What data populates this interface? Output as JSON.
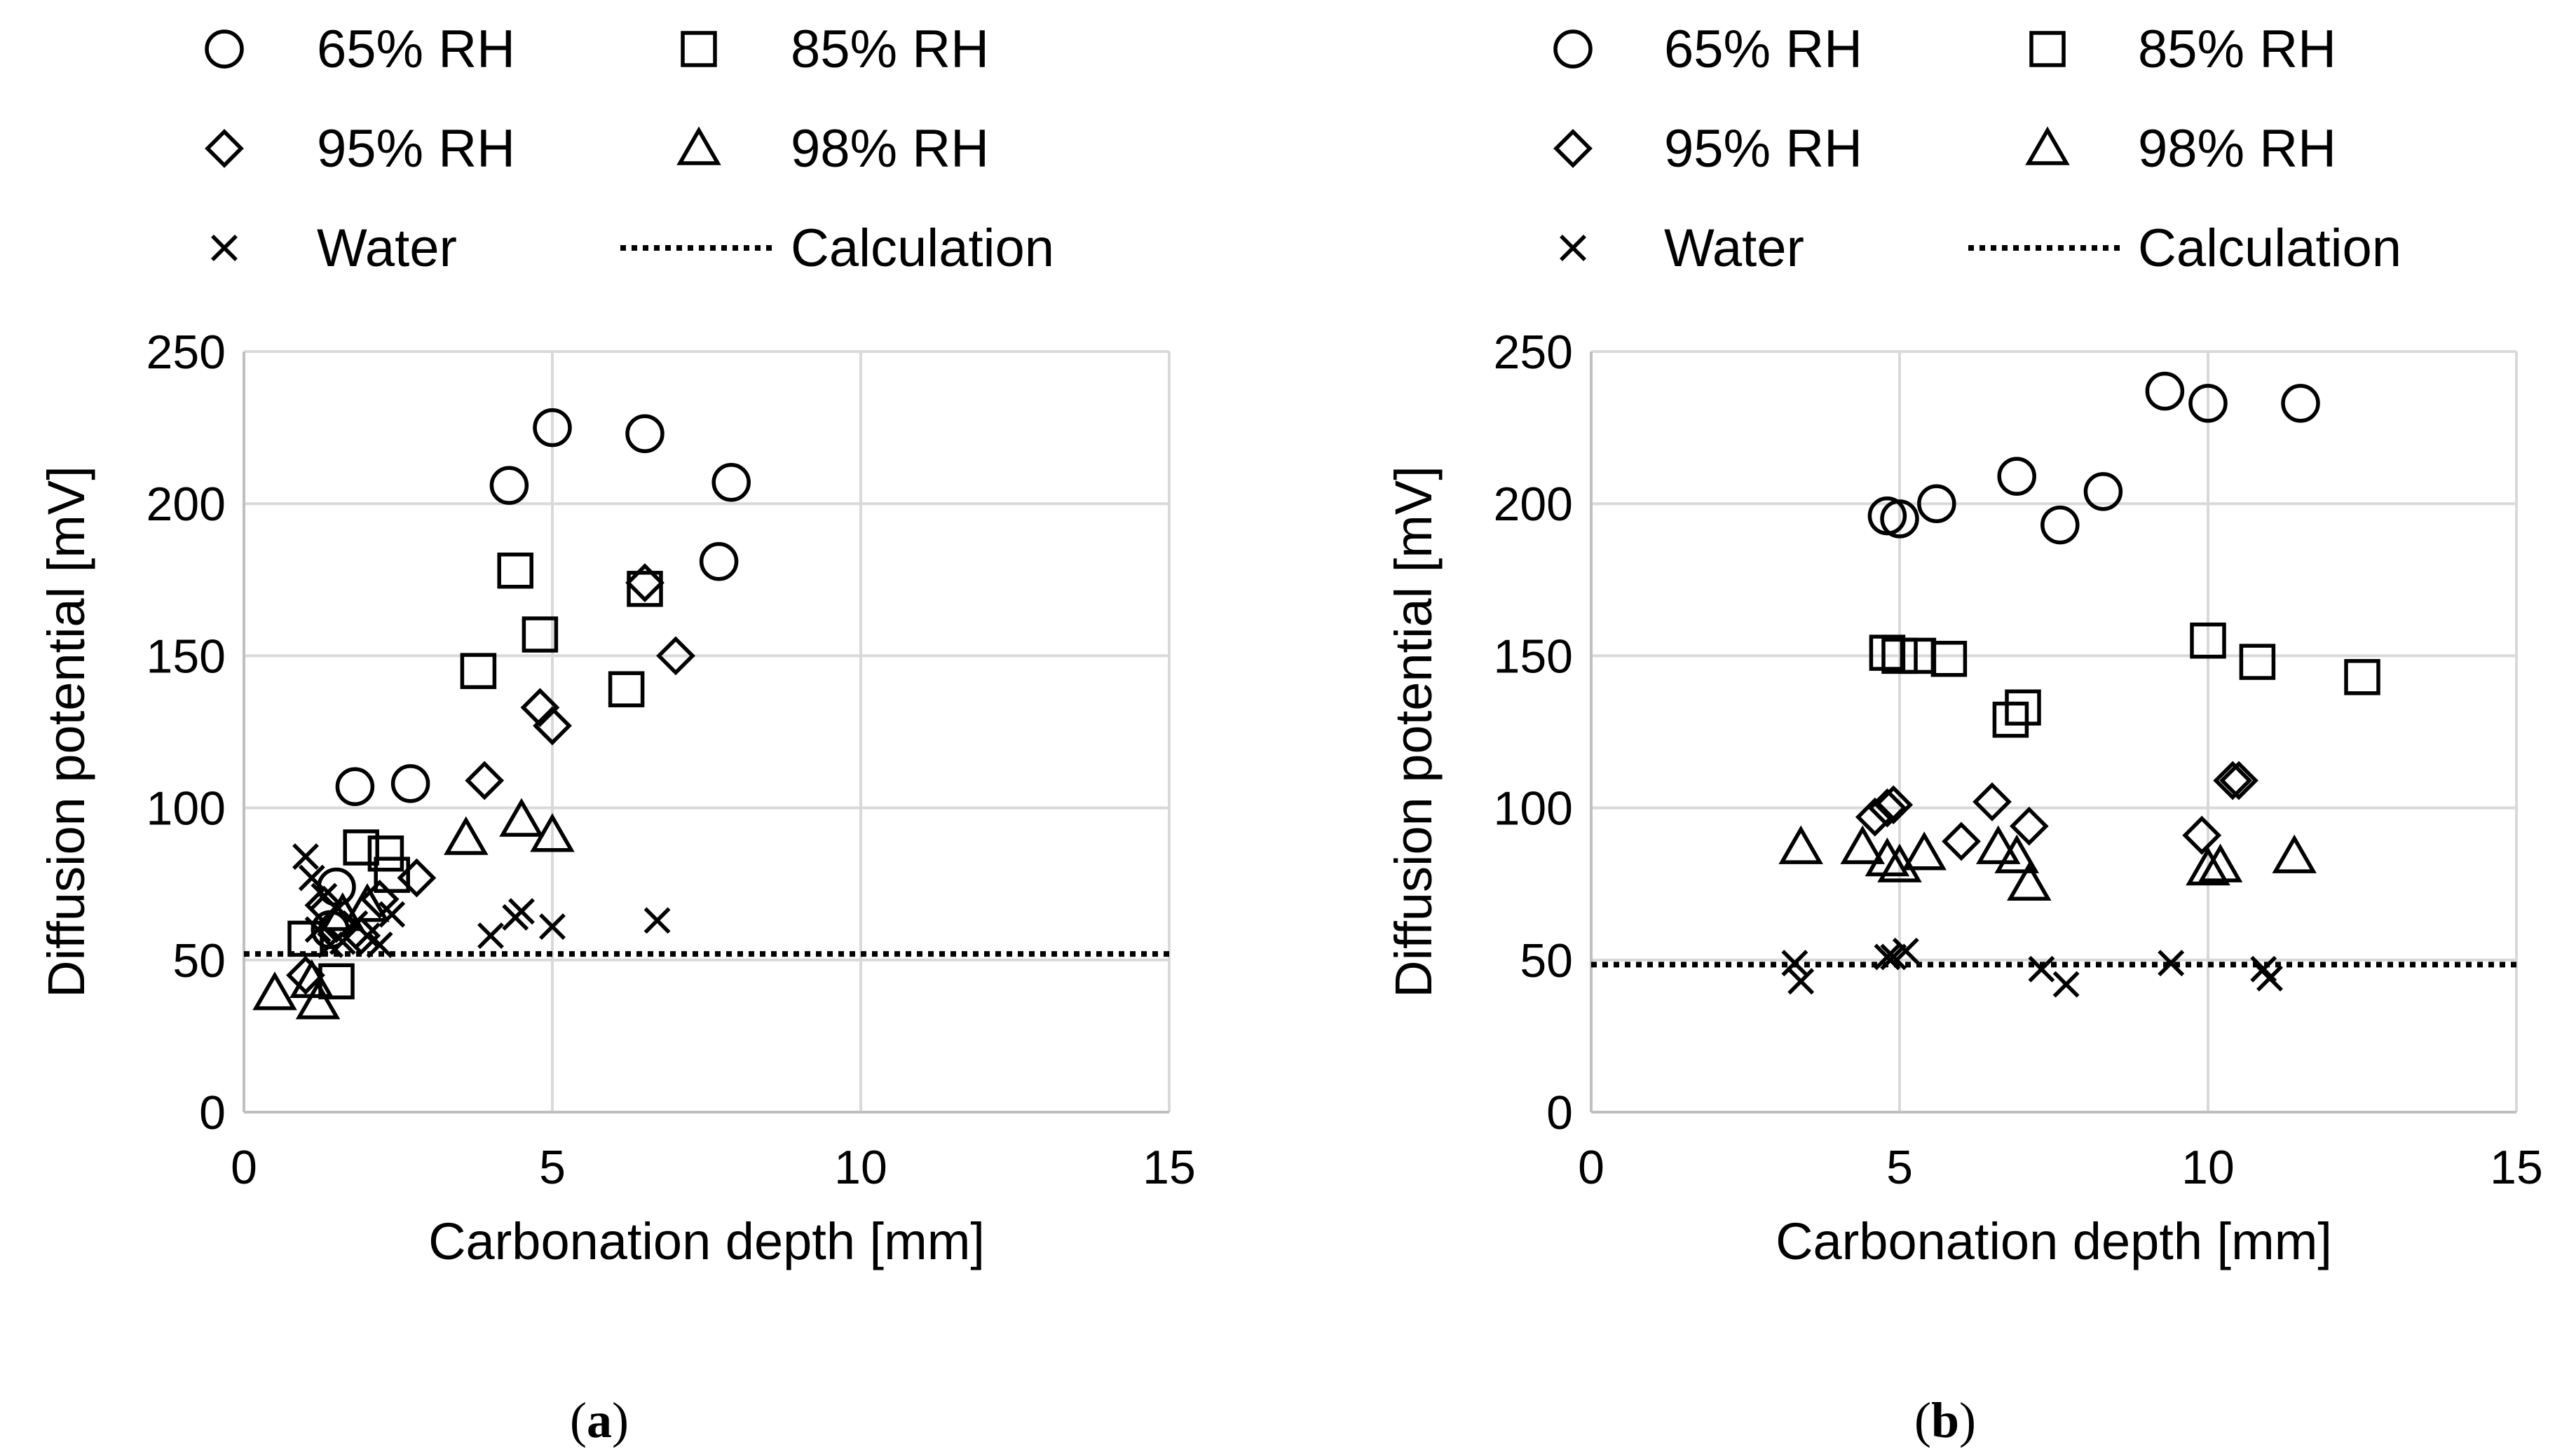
{
  "chart_data": [
    {
      "type": "scatter",
      "panel_label": "a",
      "xlabel": "Carbonation depth [mm]",
      "ylabel": "Diffusion potential [mV]",
      "xlim": [
        0,
        15
      ],
      "ylim": [
        0,
        250
      ],
      "xticks": [
        0,
        5,
        10,
        15
      ],
      "yticks": [
        0,
        50,
        100,
        150,
        200,
        250
      ],
      "grid": "vertical gridlines at x ticks; horizontal gridlines at y ticks",
      "legend_position": "top",
      "legend": [
        {
          "name": "65% RH",
          "marker": "circle"
        },
        {
          "name": "85% RH",
          "marker": "square"
        },
        {
          "name": "95% RH",
          "marker": "diamond"
        },
        {
          "name": "98% RH",
          "marker": "triangle"
        },
        {
          "name": "Water",
          "marker": "cross"
        },
        {
          "name": "Calculation",
          "marker": "dotted-line"
        }
      ],
      "series": [
        {
          "name": "65% RH",
          "marker": "circle",
          "x": [
            1.5,
            1.8,
            2.7,
            4.3,
            5.0,
            6.5,
            7.9,
            7.7,
            1.4
          ],
          "y": [
            74,
            107,
            108,
            206,
            225,
            223,
            207,
            181,
            60
          ]
        },
        {
          "name": "85% RH",
          "marker": "square",
          "x": [
            1.0,
            1.5,
            1.9,
            2.3,
            2.4,
            3.8,
            4.4,
            4.8,
            6.2,
            6.5
          ],
          "y": [
            57,
            43,
            87,
            85,
            78,
            145,
            178,
            157,
            139,
            172
          ]
        },
        {
          "name": "95% RH",
          "marker": "diamond",
          "x": [
            1.0,
            1.3,
            1.5,
            1.9,
            2.2,
            2.8,
            3.9,
            4.8,
            5.0,
            6.5,
            7.0
          ],
          "y": [
            45,
            68,
            62,
            58,
            70,
            77,
            109,
            133,
            127,
            174,
            150
          ]
        },
        {
          "name": "98% RH",
          "marker": "triangle",
          "x": [
            0.5,
            1.1,
            1.2,
            1.6,
            2.0,
            3.6,
            4.5,
            5.0
          ],
          "y": [
            39,
            43,
            36,
            65,
            68,
            90,
            96,
            91
          ]
        },
        {
          "name": "Water",
          "marker": "cross",
          "x": [
            1.0,
            1.1,
            1.3,
            1.2,
            1.4,
            1.6,
            2.0,
            2.2,
            2.4,
            1.8,
            4.0,
            4.5,
            4.4,
            5.0,
            6.7
          ],
          "y": [
            84,
            77,
            71,
            60,
            55,
            56,
            58,
            55,
            65,
            62,
            58,
            66,
            64,
            61,
            63
          ]
        },
        {
          "name": "Calculation",
          "type": "line",
          "x": [
            0,
            15
          ],
          "y": [
            52,
            52
          ]
        }
      ]
    },
    {
      "type": "scatter",
      "panel_label": "b",
      "xlabel": "Carbonation depth [mm]",
      "ylabel": "Diffusion potential [mV]",
      "xlim": [
        0,
        15
      ],
      "ylim": [
        0,
        250
      ],
      "xticks": [
        0,
        5,
        10,
        15
      ],
      "yticks": [
        0,
        50,
        100,
        150,
        200,
        250
      ],
      "grid": "vertical gridlines at x ticks; horizontal gridlines at y ticks",
      "legend_position": "top",
      "legend": [
        {
          "name": "65% RH",
          "marker": "circle"
        },
        {
          "name": "85% RH",
          "marker": "square"
        },
        {
          "name": "95% RH",
          "marker": "diamond"
        },
        {
          "name": "98% RH",
          "marker": "triangle"
        },
        {
          "name": "Water",
          "marker": "cross"
        },
        {
          "name": "Calculation",
          "marker": "dotted-line"
        }
      ],
      "series": [
        {
          "name": "65% RH",
          "marker": "circle",
          "x": [
            4.8,
            5.0,
            5.6,
            6.9,
            7.6,
            8.3,
            9.3,
            10.0,
            11.5
          ],
          "y": [
            196,
            195,
            200,
            209,
            193,
            204,
            237,
            233,
            233
          ]
        },
        {
          "name": "85% RH",
          "marker": "square",
          "x": [
            4.8,
            5.0,
            5.3,
            5.8,
            6.8,
            7.0,
            10.0,
            10.8,
            12.5
          ],
          "y": [
            151,
            150,
            150,
            149,
            129,
            133,
            155,
            148,
            143
          ]
        },
        {
          "name": "95% RH",
          "marker": "diamond",
          "x": [
            4.6,
            4.8,
            4.9,
            6.0,
            6.5,
            7.1,
            9.9,
            10.4,
            10.5
          ],
          "y": [
            97,
            100,
            101,
            89,
            102,
            94,
            91,
            109,
            109
          ]
        },
        {
          "name": "98% RH",
          "marker": "triangle",
          "x": [
            3.4,
            4.4,
            4.8,
            5.0,
            5.4,
            6.6,
            6.9,
            7.1,
            10.0,
            10.2,
            11.4
          ],
          "y": [
            87,
            87,
            83,
            81,
            85,
            87,
            84,
            75,
            80,
            81,
            84
          ]
        },
        {
          "name": "Water",
          "marker": "cross",
          "x": [
            3.3,
            3.4,
            4.8,
            4.9,
            5.1,
            7.3,
            7.7,
            9.4,
            10.9,
            11.0
          ],
          "y": [
            49,
            43,
            51,
            51,
            53,
            47,
            42,
            49,
            47,
            44
          ]
        },
        {
          "name": "Calculation",
          "type": "line",
          "x": [
            0,
            15
          ],
          "y": [
            48.5,
            48.5
          ]
        }
      ]
    }
  ]
}
